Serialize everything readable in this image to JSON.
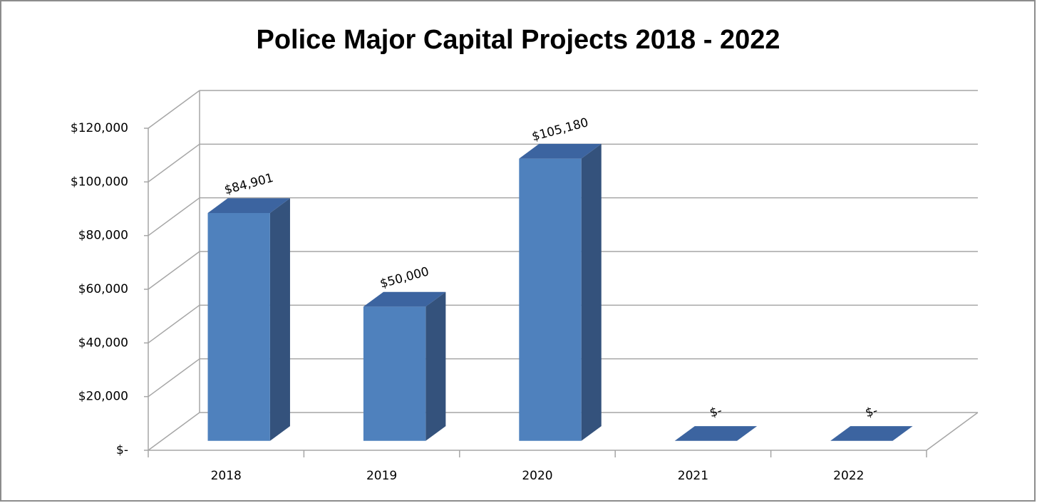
{
  "chart_data": {
    "type": "bar3d",
    "title": "Police Major Capital Projects 2018  - 2022",
    "categories": [
      "2018",
      "2019",
      "2020",
      "2021",
      "2022"
    ],
    "values": [
      84901,
      50000,
      105180,
      0,
      0
    ],
    "value_labels": [
      "$84,901",
      "$50,000",
      "$105,180",
      "$-",
      "$-"
    ],
    "color": "#4f81bd",
    "ylim": [
      0,
      120000
    ],
    "yticks": [
      {
        "value": 0,
        "label": "$-"
      },
      {
        "value": 20000,
        "label": "$20,000"
      },
      {
        "value": 40000,
        "label": "$40,000"
      },
      {
        "value": 60000,
        "label": "$60,000"
      },
      {
        "value": 80000,
        "label": "$80,000"
      },
      {
        "value": 100000,
        "label": "$100,000"
      },
      {
        "value": 120000,
        "label": "$120,000"
      }
    ],
    "grid": true
  }
}
